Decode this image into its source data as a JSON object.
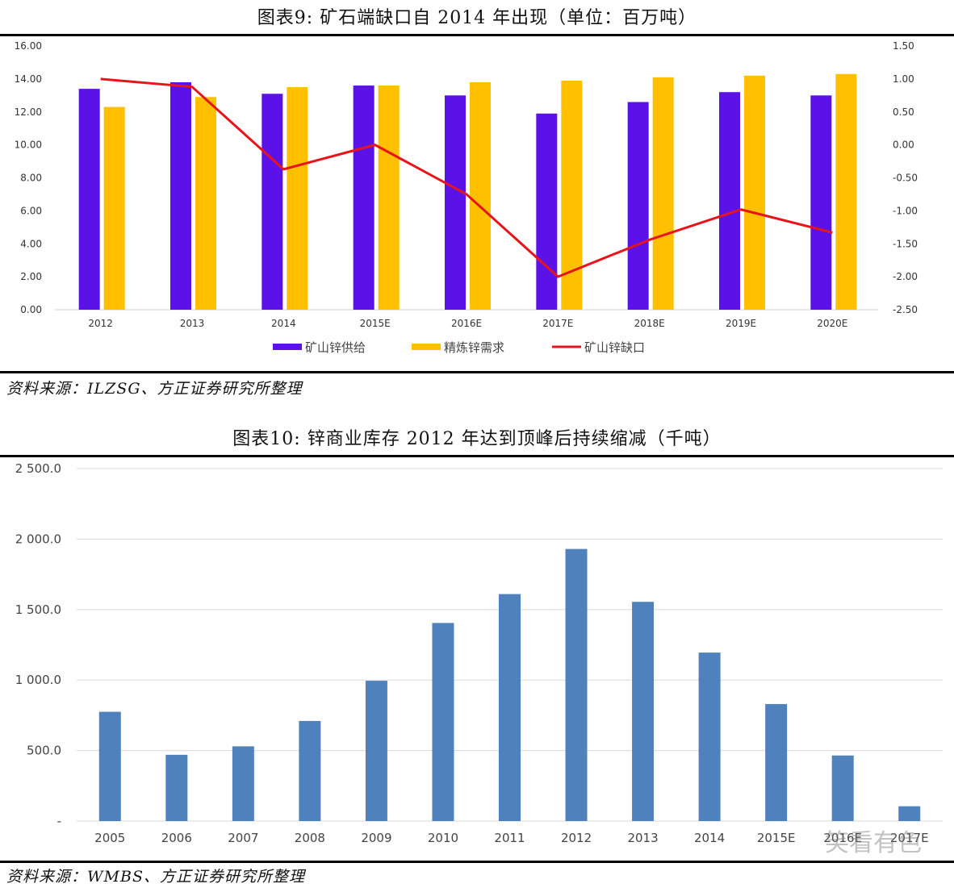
{
  "figures": [
    {
      "title": "图表9:   矿石端缺口自 2014 年出现（单位：百万吨）",
      "source": "资料来源：ILZSG、方正证券研究所整理"
    },
    {
      "title": "图表10:      锌商业库存 2012 年达到顶峰后持续缩减（千吨）",
      "source": "资料来源：WMBS、方正证券研究所整理"
    }
  ],
  "watermark": "笑看有色",
  "chart_data": [
    {
      "type": "bar",
      "categories": [
        "2012",
        "2013",
        "2014",
        "2015E",
        "2016E",
        "2017E",
        "2018E",
        "2019E",
        "2020E"
      ],
      "series": [
        {
          "name": "矿山锌供给",
          "type": "bar",
          "axis": "left",
          "color": "#5B12E8",
          "values": [
            13.4,
            13.8,
            13.1,
            13.6,
            13.0,
            11.9,
            12.6,
            13.2,
            13.0
          ]
        },
        {
          "name": "精炼锌需求",
          "type": "bar",
          "axis": "left",
          "color": "#FFC000",
          "values": [
            12.3,
            12.9,
            13.5,
            13.6,
            13.8,
            13.9,
            14.1,
            14.2,
            14.3
          ]
        },
        {
          "name": "矿山锌缺口",
          "type": "line",
          "axis": "right",
          "color": "#E8141B",
          "values": [
            1.0,
            0.88,
            -0.37,
            0.0,
            -0.75,
            -2.0,
            -1.44,
            -0.98,
            -1.33
          ]
        }
      ],
      "ylim_left": [
        0,
        16
      ],
      "yticks_left": [
        "0.00",
        "2.00",
        "4.00",
        "6.00",
        "8.00",
        "10.00",
        "12.00",
        "14.00",
        "16.00"
      ],
      "ylim_right": [
        -2.5,
        1.5
      ],
      "yticks_right": [
        "-2.50",
        "-2.00",
        "-1.50",
        "-1.00",
        "-0.50",
        "0.00",
        "0.50",
        "1.00",
        "1.50"
      ],
      "grid": false,
      "legend": "bottom"
    },
    {
      "type": "bar",
      "categories": [
        "2005",
        "2006",
        "2007",
        "2008",
        "2009",
        "2010",
        "2011",
        "2012",
        "2013",
        "2014",
        "2015E",
        "2016E",
        "2017E"
      ],
      "series": [
        {
          "color": "#4F81BD",
          "values": [
            775,
            470,
            530,
            710,
            995,
            1405,
            1610,
            1930,
            1555,
            1195,
            830,
            465,
            105
          ]
        }
      ],
      "ylim": [
        0,
        2500
      ],
      "yticks": [
        "-",
        "500.0",
        "1 000.0",
        "1 500.0",
        "2 000.0",
        "2 500.0"
      ],
      "grid": true,
      "legend": "none"
    }
  ]
}
